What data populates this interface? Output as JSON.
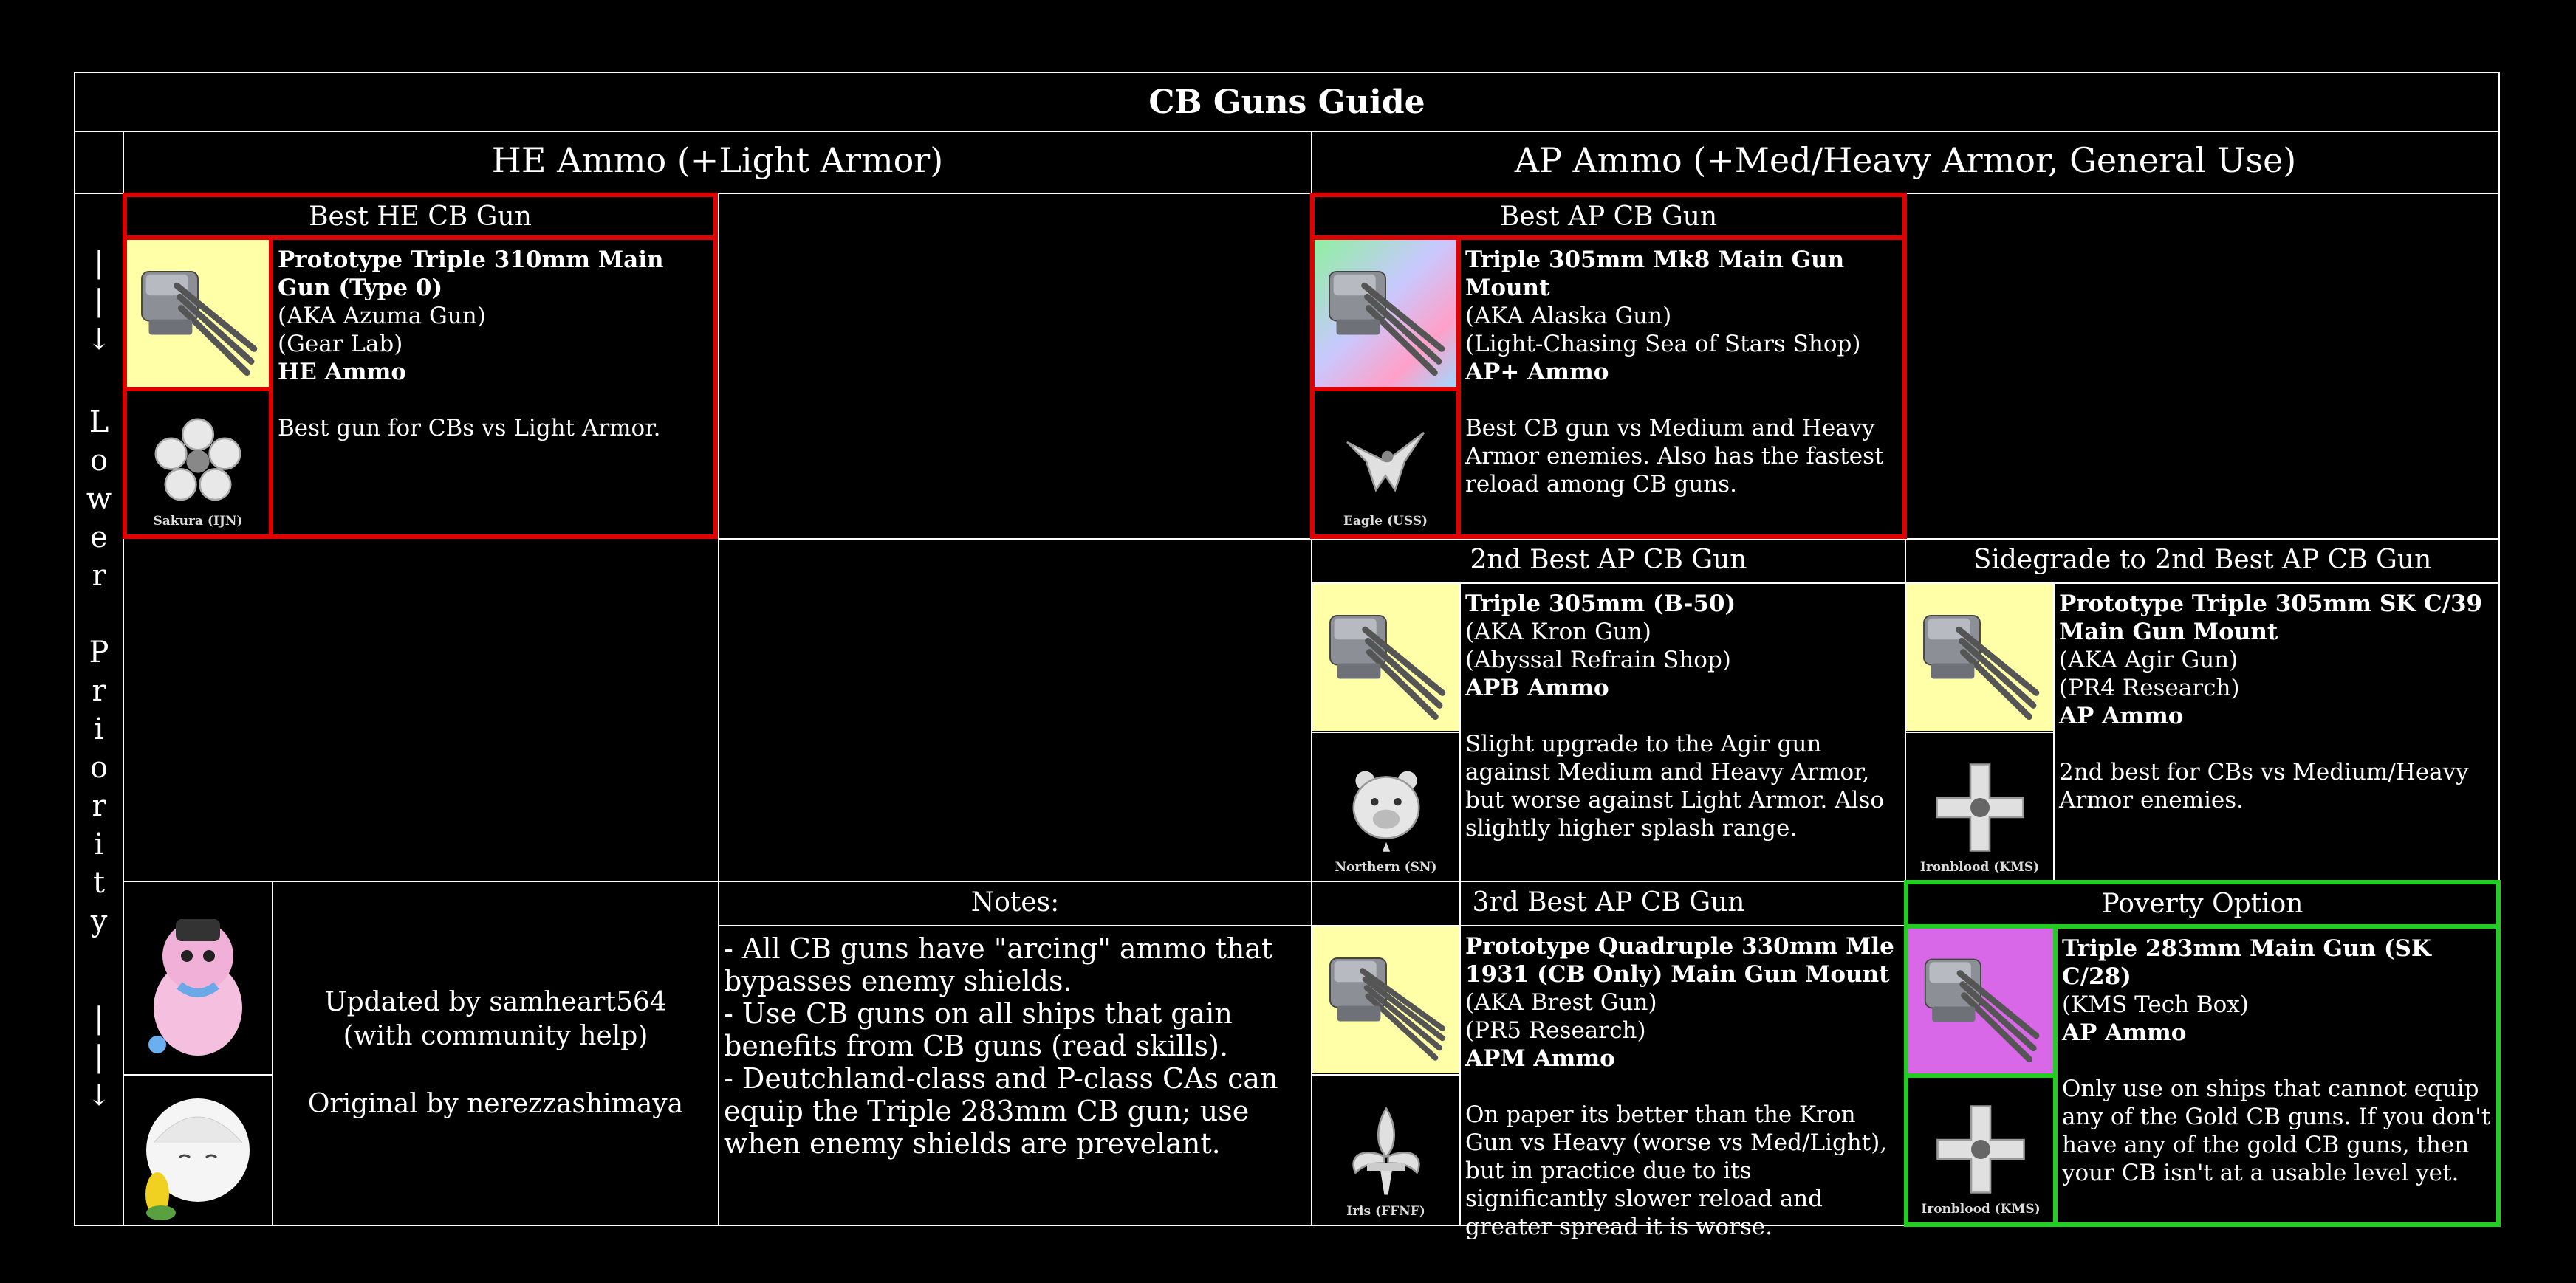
{
  "title": "CB Guns Guide",
  "columns": {
    "he": "HE Ammo (+Light Armor)",
    "ap": "AP Ammo (+Med/Heavy Armor, General Use)"
  },
  "priority_label": {
    "arrow_top": [
      "|",
      "|",
      "↓"
    ],
    "letters_lower": [
      "L",
      "o",
      "w",
      "e",
      "r"
    ],
    "letters_priority": [
      "P",
      "r",
      "i",
      "o",
      "r",
      "i",
      "t",
      "y"
    ],
    "arrow_bottom": [
      "|",
      "|",
      "↓"
    ]
  },
  "sections": {
    "best_he": "Best HE CB Gun",
    "best_ap": "Best AP CB Gun",
    "second_ap": "2nd Best AP CB Gun",
    "sidegrade": "Sidegrade to 2nd Best AP CB Gun",
    "third_ap": "3rd Best AP CB Gun",
    "poverty": "Poverty Option",
    "notes": "Notes:"
  },
  "guns": {
    "best_he": {
      "name": "Prototype Triple 310mm Main Gun (Type 0)",
      "aka": "(AKA Azuma Gun)",
      "source": "(Gear Lab)",
      "ammo": "HE Ammo",
      "note": "Best gun for CBs vs Light Armor.",
      "faction": "Sakura (IJN)"
    },
    "best_ap": {
      "name": "Triple 305mm Mk8 Main Gun Mount",
      "aka": "(AKA Alaska Gun)",
      "source": "(Light-Chasing Sea of Stars Shop)",
      "ammo": "AP+ Ammo",
      "note": "Best CB gun vs Medium and Heavy Armor enemies. Also has the fastest reload among CB guns.",
      "faction": "Eagle (USS)"
    },
    "second_ap": {
      "name": "Triple 305mm (B-50)",
      "aka": "(AKA Kron Gun)",
      "source": "(Abyssal Refrain Shop)",
      "ammo": "APB Ammo",
      "note": "Slight upgrade to the Agir gun against Medium and Heavy Armor, but worse against Light Armor. Also slightly higher splash range.",
      "faction": "Northern (SN)"
    },
    "sidegrade": {
      "name": "Prototype Triple 305mm SK C/39 Main Gun Mount",
      "aka": "(AKA Agir Gun)",
      "source": "(PR4 Research)",
      "ammo": "AP Ammo",
      "note": "2nd best for CBs vs Medium/Heavy Armor enemies.",
      "faction": "Ironblood (KMS)"
    },
    "third_ap": {
      "name": "Prototype Quadruple 330mm Mle 1931 (CB Only) Main Gun Mount",
      "aka": "(AKA Brest Gun)",
      "source": "(PR5 Research)",
      "ammo": "APM Ammo",
      "note": "On paper its better than the Kron Gun vs Heavy (worse vs Med/Light), but in practice due to its significantly slower reload and greater spread it is worse.",
      "faction": "Iris (FFNF)"
    },
    "poverty": {
      "name": "Triple 283mm Main Gun (SK C/28)",
      "source": "(KMS Tech Box)",
      "ammo": "AP Ammo",
      "note": "Only use on ships that cannot equip any of the Gold CB guns. If you don't have any of the gold CB guns, then your CB isn't at a usable level yet.",
      "faction": "Ironblood (KMS)"
    }
  },
  "notes": [
    "- All CB guns have \"arcing\" ammo that bypasses enemy shields.",
    "- Use CB guns on all ships that gain benefits from CB guns (read skills).",
    "- Deutchland-class and P-class CAs can equip the Triple 283mm CB gun; use when enemy shields are prevelant."
  ],
  "credits": {
    "updated": "Updated by samheart564",
    "help": "(with community help)",
    "original": "Original by nerezzashimaya"
  },
  "colors": {
    "background": "#000000",
    "grid": "#ffffff",
    "highlight_red": "#e00000",
    "highlight_green": "#22cc22",
    "gold_bg": "#ffffa8",
    "purple_bg": "#d868e8"
  },
  "icons": {
    "gun": "turret-icon",
    "sakura": "sakura-emblem-icon",
    "eagle": "eagle-emblem-icon",
    "northern": "bear-emblem-icon",
    "ironblood": "iron-cross-emblem-icon",
    "iris": "fleur-de-lis-emblem-icon"
  }
}
